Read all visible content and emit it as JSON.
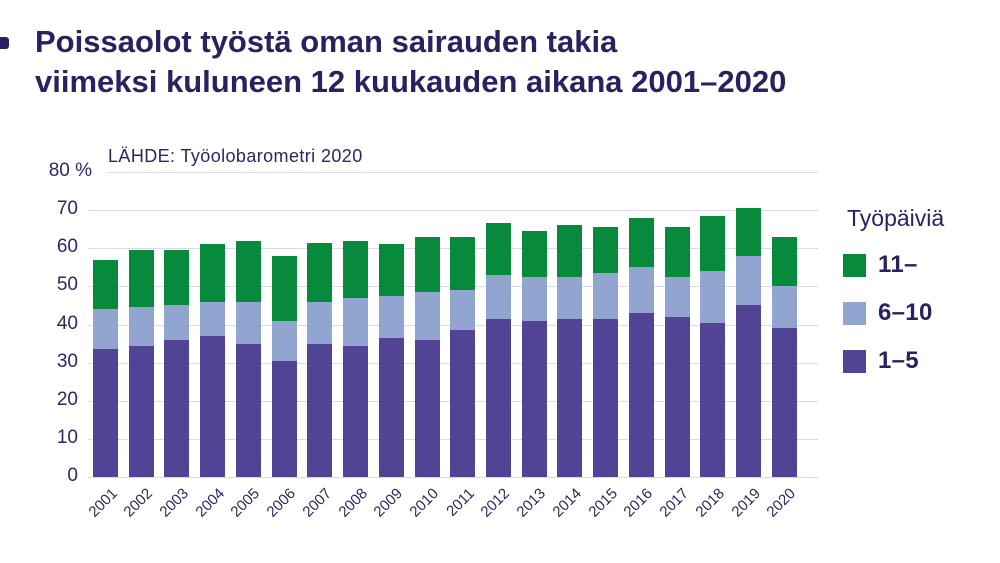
{
  "title": {
    "line1": "Poissaolot työstä oman sairauden takia",
    "line2": "viimeksi kuluneen 12 kuukauden aikana 2001–2020"
  },
  "source": "LÄHDE: Työolobarometri 2020",
  "y_axis": {
    "unit": "%",
    "ticks": [
      80,
      70,
      60,
      50,
      40,
      30,
      20,
      10,
      0
    ]
  },
  "legend": {
    "title": "Työpäiviä",
    "items": [
      {
        "label": "11–",
        "color": "#078A3C"
      },
      {
        "label": "6–10",
        "color": "#92A5D1"
      },
      {
        "label": "1–5",
        "color": "#524494"
      }
    ]
  },
  "colors": {
    "navy_text": "#272361",
    "gridline": "#D9DAE6",
    "background": "#FFFFFF",
    "green": "#078A3C",
    "light_blue": "#92A5D1",
    "purple": "#524494"
  },
  "chart_data": {
    "type": "bar",
    "stacked": true,
    "title": "Poissaolot työstä oman sairauden takia viimeksi kuluneen 12 kuukauden aikana 2001–2020",
    "source": "LÄHDE: Työolobarometri 2020",
    "xlabel": "",
    "ylabel": "%",
    "ylim": [
      0,
      80
    ],
    "grid": "horizontal",
    "legend_title": "Työpäiviä",
    "legend_position": "right",
    "categories": [
      "2001",
      "2002",
      "2003",
      "2004",
      "2005",
      "2006",
      "2007",
      "2008",
      "2009",
      "2010",
      "2011",
      "2012",
      "2013",
      "2014",
      "2015",
      "2016",
      "2017",
      "2018",
      "2019",
      "2020"
    ],
    "series": [
      {
        "name": "1–5",
        "color": "#524494",
        "values": [
          33.5,
          34.5,
          36,
          37,
          35,
          30.5,
          35,
          34.5,
          36.5,
          36,
          38.5,
          41.5,
          41,
          41.5,
          41.5,
          43,
          42,
          40.5,
          45,
          39
        ]
      },
      {
        "name": "6–10",
        "color": "#92A5D1",
        "values": [
          10.5,
          10,
          9,
          9,
          11,
          10.5,
          11,
          12.5,
          11,
          12.5,
          10.5,
          11.5,
          11.5,
          11,
          12,
          12,
          10.5,
          13.5,
          13,
          11
        ]
      },
      {
        "name": "11–",
        "color": "#078A3C",
        "values": [
          13,
          15,
          14.5,
          15,
          16,
          17,
          15.5,
          15,
          13.5,
          14.5,
          14,
          13.5,
          12,
          13.5,
          12,
          13,
          13,
          14.5,
          12.5,
          13
        ]
      }
    ]
  }
}
